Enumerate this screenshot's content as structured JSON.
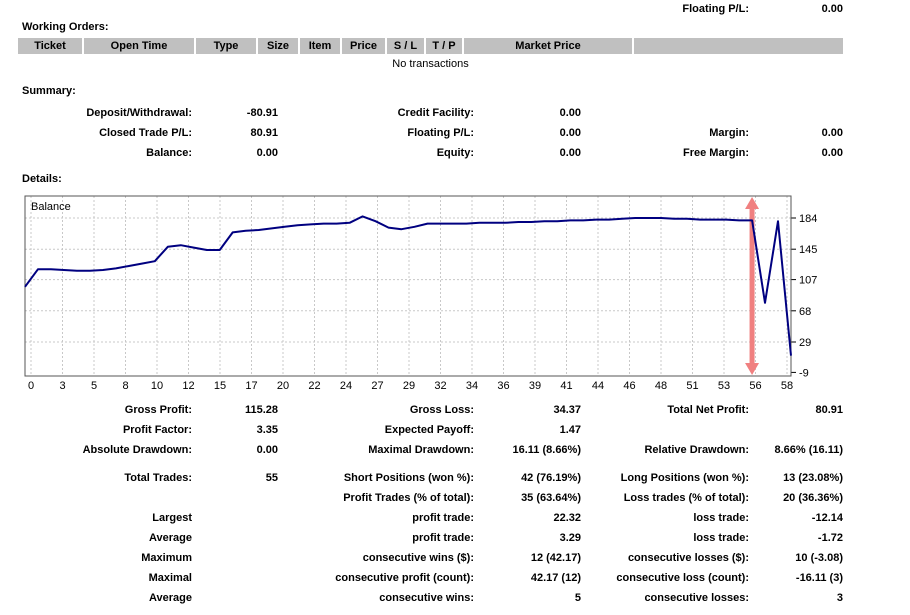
{
  "top": {
    "floating_pl_label": "Floating P/L:",
    "floating_pl_value": "0.00"
  },
  "working_orders": {
    "title": "Working Orders:",
    "columns": [
      "Ticket",
      "Open Time",
      "Type",
      "Size",
      "Item",
      "Price",
      "S / L",
      "T / P",
      "Market Price",
      ""
    ],
    "empty_message": "No transactions"
  },
  "summary": {
    "title": "Summary:",
    "rows": [
      [
        "Deposit/Withdrawal:",
        "-80.91",
        "Credit Facility:",
        "0.00",
        "",
        ""
      ],
      [
        "Closed Trade P/L:",
        "80.91",
        "Floating P/L:",
        "0.00",
        "Margin:",
        "0.00"
      ],
      [
        "Balance:",
        "0.00",
        "Equity:",
        "0.00",
        "Free Margin:",
        "0.00"
      ]
    ]
  },
  "details": {
    "title": "Details:"
  },
  "chart_data": {
    "type": "line",
    "title": "Balance",
    "line_color": "#000080",
    "grid": true,
    "grid_color": "#c8c8c8",
    "border_color": "#555555",
    "x": [
      0,
      1,
      2,
      3,
      4,
      5,
      6,
      7,
      8,
      9,
      10,
      11,
      12,
      13,
      14,
      15,
      16,
      17,
      18,
      19,
      20,
      21,
      22,
      23,
      24,
      25,
      26,
      27,
      28,
      29,
      30,
      31,
      32,
      33,
      34,
      35,
      36,
      37,
      38,
      39,
      40,
      41,
      42,
      43,
      44,
      45,
      46,
      47,
      48,
      49,
      50,
      51,
      52,
      53,
      54,
      55,
      56,
      57,
      58,
      59
    ],
    "values": [
      98,
      120,
      120,
      119,
      118,
      118,
      119,
      121,
      124,
      127,
      130,
      148,
      150,
      147,
      144,
      144,
      166,
      168,
      169,
      171,
      173,
      175,
      176,
      177,
      177,
      178,
      186,
      180,
      172,
      170,
      173,
      177,
      177,
      177,
      177,
      178,
      178,
      178,
      179,
      179,
      180,
      180,
      181,
      181,
      182,
      182,
      183,
      184,
      184,
      184,
      183,
      183,
      182,
      182,
      182,
      181,
      181,
      78,
      180,
      12
    ],
    "x_tick_labels": [
      "0",
      "3",
      "5",
      "8",
      "10",
      "12",
      "15",
      "17",
      "20",
      "22",
      "24",
      "27",
      "29",
      "32",
      "34",
      "36",
      "39",
      "41",
      "44",
      "46",
      "48",
      "51",
      "53",
      "56",
      "58"
    ],
    "y_tick_labels": [
      "184",
      "145",
      "107",
      "68",
      "29",
      "-9"
    ],
    "y_tick_values": [
      184,
      145,
      107,
      68,
      29,
      -9
    ],
    "xlim": [
      0,
      59
    ],
    "ylim": [
      -14,
      212
    ],
    "drawdown_arrow": {
      "x": 56,
      "color": "#f08080"
    }
  },
  "stats": {
    "rows_a": [
      [
        "Gross Profit:",
        "115.28",
        "Gross Loss:",
        "34.37",
        "Total Net Profit:",
        "80.91"
      ],
      [
        "Profit Factor:",
        "3.35",
        "Expected Payoff:",
        "1.47",
        "",
        ""
      ],
      [
        "Absolute Drawdown:",
        "0.00",
        "Maximal Drawdown:",
        "16.11 (8.66%)",
        "Relative Drawdown:",
        "8.66% (16.11)"
      ]
    ],
    "rows_b": [
      [
        "Total Trades:",
        "55",
        "Short Positions (won %):",
        "42 (76.19%)",
        "Long Positions (won %):",
        "13 (23.08%)"
      ],
      [
        "",
        "",
        "Profit Trades (% of total):",
        "35 (63.64%)",
        "Loss trades (% of total):",
        "20 (36.36%)"
      ],
      [
        "Largest",
        "",
        "profit trade:",
        "22.32",
        "loss trade:",
        "-12.14"
      ],
      [
        "Average",
        "",
        "profit trade:",
        "3.29",
        "loss trade:",
        "-1.72"
      ],
      [
        "Maximum",
        "",
        "consecutive wins ($):",
        "12 (42.17)",
        "consecutive losses ($):",
        "10 (-3.08)"
      ],
      [
        "Maximal",
        "",
        "consecutive profit (count):",
        "42.17 (12)",
        "consecutive loss (count):",
        "-16.11 (3)"
      ],
      [
        "Average",
        "",
        "consecutive wins:",
        "5",
        "consecutive losses:",
        "3"
      ]
    ]
  }
}
